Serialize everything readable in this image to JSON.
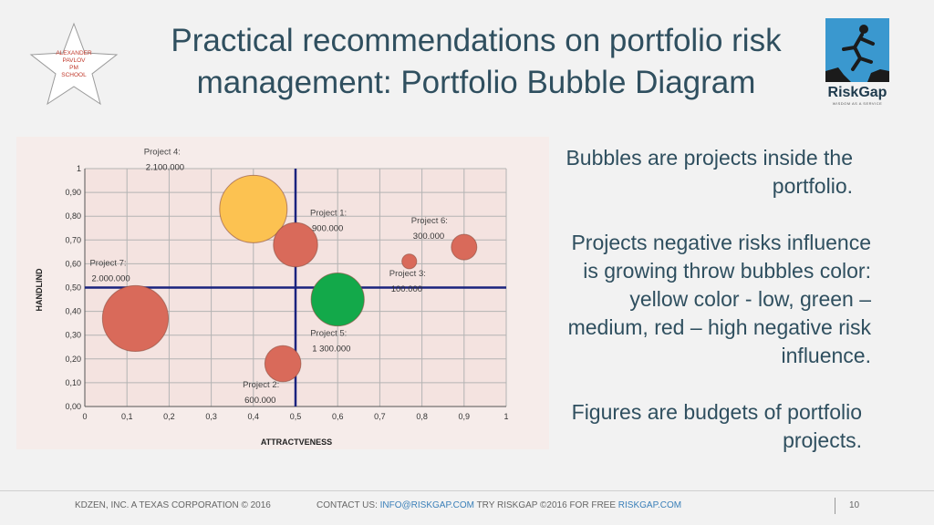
{
  "badge": {
    "lines": [
      "ALEXANDER",
      "PAVLOV",
      "PM",
      "SCHOOL"
    ]
  },
  "title": {
    "line1": "Practical recommendations on portfolio risk",
    "line2": "management: Portfolio Bubble Diagram"
  },
  "logo": {
    "name": "RiskGap",
    "tagline": "WISDOM AS A SERVICE"
  },
  "colors": {
    "title": "#2f4f5f",
    "yellow": "#fcc251",
    "green": "#13a94a",
    "red": "#d96a5a",
    "axis": "#1a237e"
  },
  "chart_data": {
    "type": "bubble",
    "xlabel": "ATTRACTVENESS",
    "ylabel": "HANDLIND",
    "xlim": [
      0,
      1
    ],
    "ylim": [
      0,
      1
    ],
    "x_ticks": [
      "0",
      "0,1",
      "0,2",
      "0,3",
      "0,4",
      "0,5",
      "0,6",
      "0,7",
      "0,8",
      "0,9",
      "1"
    ],
    "y_ticks": [
      "0,00",
      "0,10",
      "0,20",
      "0,30",
      "0,40",
      "0,50",
      "0,60",
      "0,70",
      "0,80",
      "0,90",
      "1"
    ],
    "grid": true,
    "quadrant_lines": {
      "x": 0.5,
      "y": 0.5
    },
    "bubbles": [
      {
        "name": "Project 4:",
        "budget": "2.100.000",
        "x": 0.4,
        "y": 0.83,
        "budget_value": 2100000,
        "color": "yellow"
      },
      {
        "name": "Project 1:",
        "budget": "900.000",
        "x": 0.5,
        "y": 0.68,
        "budget_value": 900000,
        "color": "red"
      },
      {
        "name": "Project 6:",
        "budget": "300.000",
        "x": 0.9,
        "y": 0.67,
        "budget_value": 300000,
        "color": "red"
      },
      {
        "name": "Project 7:",
        "budget": "2.000.000",
        "x": 0.12,
        "y": 0.37,
        "budget_value": 2000000,
        "color": "red"
      },
      {
        "name": "Project 3:",
        "budget": "100.000",
        "x": 0.77,
        "y": 0.61,
        "budget_value": 100000,
        "color": "red"
      },
      {
        "name": "Project 5:",
        "budget": "1 300.000",
        "x": 0.6,
        "y": 0.45,
        "budget_value": 1300000,
        "color": "green"
      },
      {
        "name": "Project 2:",
        "budget": "600.000",
        "x": 0.47,
        "y": 0.18,
        "budget_value": 600000,
        "color": "red"
      }
    ]
  },
  "description": {
    "p1": "Bubbles are projects inside the portfolio.",
    "p2": "Projects negative risks influence is growing throw bubbles color:  yellow color - low, green – medium, red – high negative risk influence.",
    "p3": "Figures are budgets of portfolio projects."
  },
  "footer": {
    "company": "KDZEN, INC. A TEXAS CORPORATION © 2016",
    "contact_label": "CONTACT US:",
    "email": "INFO@RISKGAP.COM",
    "try_text": "TRY RISKGAP ©2016 FOR FREE",
    "site": "RISKGAP.COM",
    "page": "10"
  }
}
